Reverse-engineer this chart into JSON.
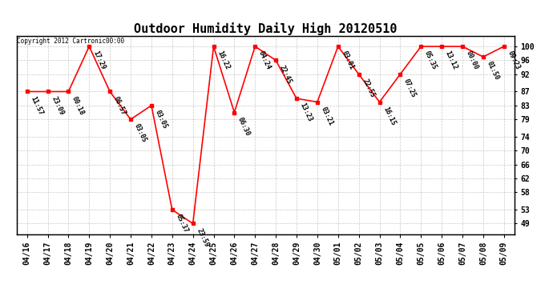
{
  "title": "Outdoor Humidity Daily High 20120510",
  "copyright_text": "Copyright 2012 Cartronic00:00",
  "x_labels": [
    "04/16",
    "04/17",
    "04/18",
    "04/19",
    "04/20",
    "04/21",
    "04/22",
    "04/23",
    "04/24",
    "04/25",
    "04/26",
    "04/27",
    "04/28",
    "04/29",
    "04/30",
    "05/01",
    "05/02",
    "05/03",
    "05/04",
    "05/05",
    "05/06",
    "05/07",
    "05/08",
    "05/09"
  ],
  "y_values": [
    87,
    87,
    87,
    100,
    87,
    79,
    83,
    53,
    49,
    100,
    81,
    100,
    96,
    85,
    84,
    100,
    92,
    84,
    92,
    100,
    100,
    100,
    97,
    100
  ],
  "time_labels": [
    "11:57",
    "23:09",
    "00:18",
    "17:29",
    "06:57",
    "03:05",
    "03:05",
    "05:37",
    "23:59",
    "16:22",
    "06:30",
    "04:24",
    "22:45",
    "13:23",
    "03:21",
    "03:01",
    "22:55",
    "16:15",
    "07:25",
    "05:35",
    "13:12",
    "00:00",
    "01:50",
    "09:23"
  ],
  "y_ticks": [
    49,
    53,
    58,
    62,
    66,
    70,
    74,
    79,
    83,
    87,
    92,
    96,
    100
  ],
  "ylim": [
    46,
    103
  ],
  "line_color": "red",
  "marker_color": "red",
  "bg_color": "white",
  "grid_color": "#bbbbbb",
  "title_fontsize": 11,
  "label_fontsize": 7,
  "time_label_fontsize": 6
}
